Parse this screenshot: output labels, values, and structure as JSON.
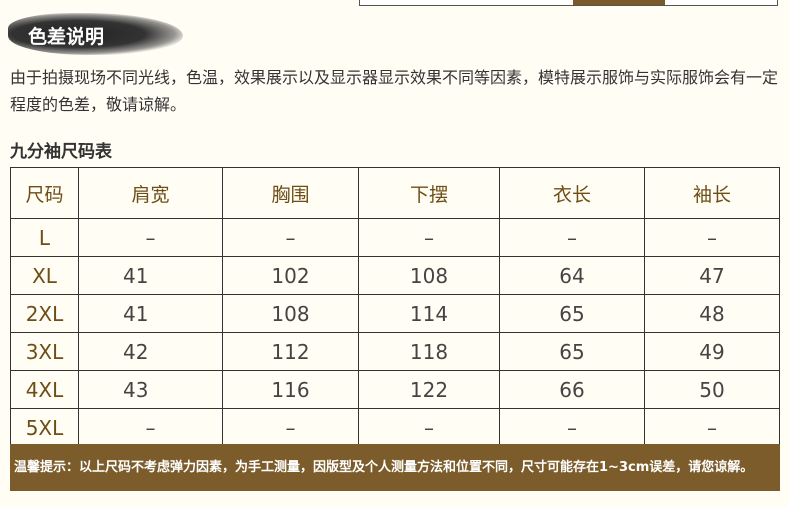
{
  "header": {
    "badge": "色差说明"
  },
  "description": "由于拍摄现场不同光线，色温，效果展示以及显示器显示效果不同等因素，模特展示服饰与实际服饰会有一定程度的色差，敬请谅解。",
  "table_title": "九分袖尺码表",
  "columns": [
    "尺码",
    "肩宽",
    "胸围",
    "下摆",
    "衣长",
    "袖长"
  ],
  "rows": [
    [
      "L",
      "–",
      "–",
      "–",
      "–",
      "–"
    ],
    [
      "XL",
      "41",
      "102",
      "108",
      "64",
      "47"
    ],
    [
      "2XL",
      "41",
      "108",
      "114",
      "65",
      "48"
    ],
    [
      "3XL",
      "42",
      "112",
      "118",
      "65",
      "49"
    ],
    [
      "4XL",
      "43",
      "116",
      "122",
      "66",
      "50"
    ],
    [
      "5XL",
      "–",
      "–",
      "–",
      "–",
      "–"
    ]
  ],
  "tip": "温馨提示：以上尺码不考虑弹力因素，为手工测量，因版型及个人测量方法和位置不同，尺寸可能存在1~3cm误差，请您谅解。",
  "colors": {
    "accent": "#7b5c2a",
    "header_text": "#6e4e16"
  }
}
